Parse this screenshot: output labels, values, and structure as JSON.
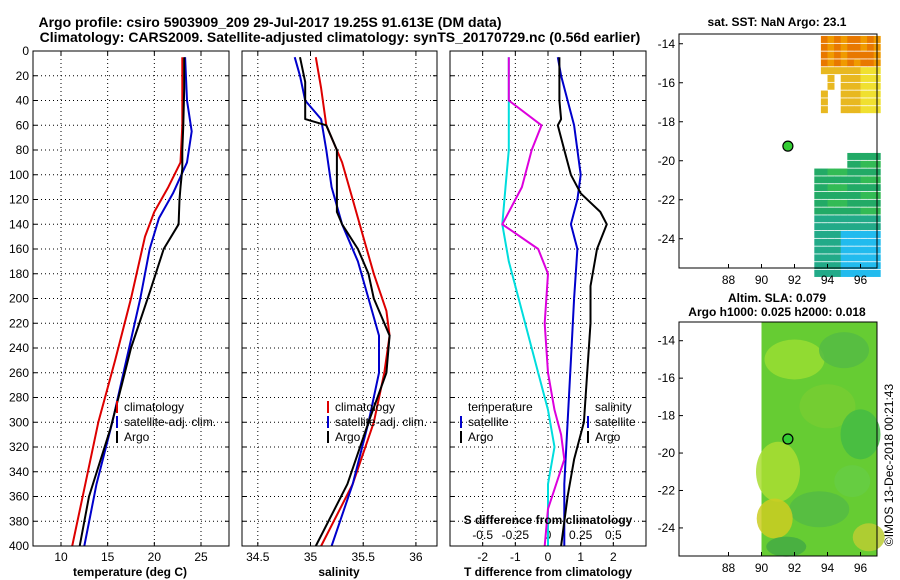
{
  "title_line1": "Argo profile: csiro 5903909_209 29-Jul-2017 19.25S 91.613E (DM data)",
  "title_line2": "Climatology: CARS2009. Satellite-adjusted climatology: synTS_20170729.nc (0.56d earlier)",
  "credit": "©IMOS 13-Dec-2018 00:21:43",
  "colors": {
    "climatology": "#dd0000",
    "satellite": "#0000cc",
    "argo": "#000000",
    "sdiff": "#dd00dd",
    "tdiff": "#00dddd"
  },
  "chart_data": [
    {
      "type": "line",
      "name": "temperature-profile",
      "xlabel": "temperature (deg C)",
      "ylabel": "",
      "xlim": [
        7,
        28
      ],
      "ylim": [
        400,
        0
      ],
      "xticks": [
        10,
        15,
        20,
        25
      ],
      "yticks": [
        0,
        20,
        40,
        60,
        80,
        100,
        120,
        140,
        160,
        180,
        200,
        220,
        240,
        260,
        280,
        300,
        320,
        340,
        360,
        380,
        400
      ],
      "grid": true,
      "legend": [
        {
          "label": "climatology",
          "color": "#dd0000"
        },
        {
          "label": "satellite-adj. clim.",
          "color": "#0000cc"
        },
        {
          "label": "Argo",
          "color": "#000000"
        }
      ],
      "series": [
        {
          "name": "climatology",
          "color": "#dd0000",
          "points": [
            [
              23.0,
              5
            ],
            [
              23.0,
              60
            ],
            [
              22.8,
              90
            ],
            [
              21.5,
              110
            ],
            [
              20.0,
              130
            ],
            [
              19.0,
              150
            ],
            [
              17.5,
              200
            ],
            [
              15.8,
              250
            ],
            [
              14.0,
              300
            ],
            [
              12.6,
              350
            ],
            [
              11.2,
              400
            ]
          ]
        },
        {
          "name": "satellite-adj. clim.",
          "color": "#0000cc",
          "points": [
            [
              23.3,
              5
            ],
            [
              23.5,
              40
            ],
            [
              24.0,
              65
            ],
            [
              23.5,
              90
            ],
            [
              22.0,
              115
            ],
            [
              20.5,
              135
            ],
            [
              19.5,
              160
            ],
            [
              18.5,
              200
            ],
            [
              17.0,
              250
            ],
            [
              15.5,
              300
            ],
            [
              13.8,
              350
            ],
            [
              12.5,
              400
            ]
          ]
        },
        {
          "name": "Argo",
          "color": "#000000",
          "points": [
            [
              23.2,
              5
            ],
            [
              23.2,
              30
            ],
            [
              23.1,
              60
            ],
            [
              23.0,
              80
            ],
            [
              23.0,
              95
            ],
            [
              22.8,
              110
            ],
            [
              22.7,
              120
            ],
            [
              22.6,
              140
            ],
            [
              21.0,
              160
            ],
            [
              19.5,
              195
            ],
            [
              17.5,
              240
            ],
            [
              16.5,
              270
            ],
            [
              15.3,
              305
            ],
            [
              13.0,
              360
            ],
            [
              12.0,
              400
            ]
          ]
        }
      ]
    },
    {
      "type": "line",
      "name": "salinity-profile",
      "xlabel": "salinity",
      "ylabel": "",
      "xlim": [
        34.35,
        36.2
      ],
      "ylim": [
        400,
        0
      ],
      "xticks": [
        34.5,
        35,
        35.5,
        36
      ],
      "xticklabels": [
        "34.5",
        "35",
        "35.5",
        "36"
      ],
      "grid": true,
      "legend": [
        {
          "label": "climatology",
          "color": "#dd0000"
        },
        {
          "label": "satellite-adj. clim.",
          "color": "#0000cc"
        },
        {
          "label": "Argo",
          "color": "#000000"
        }
      ],
      "series": [
        {
          "name": "climatology",
          "color": "#dd0000",
          "points": [
            [
              35.05,
              5
            ],
            [
              35.1,
              30
            ],
            [
              35.15,
              60
            ],
            [
              35.3,
              90
            ],
            [
              35.4,
              120
            ],
            [
              35.5,
              150
            ],
            [
              35.6,
              180
            ],
            [
              35.72,
              210
            ],
            [
              35.75,
              230
            ],
            [
              35.7,
              260
            ],
            [
              35.6,
              300
            ],
            [
              35.4,
              350
            ],
            [
              35.1,
              400
            ]
          ]
        },
        {
          "name": "satellite-adj. clim.",
          "color": "#0000cc",
          "points": [
            [
              34.85,
              5
            ],
            [
              34.9,
              20
            ],
            [
              34.95,
              40
            ],
            [
              35.1,
              55
            ],
            [
              35.15,
              80
            ],
            [
              35.2,
              110
            ],
            [
              35.3,
              140
            ],
            [
              35.45,
              170
            ],
            [
              35.55,
              200
            ],
            [
              35.65,
              230
            ],
            [
              35.65,
              260
            ],
            [
              35.55,
              300
            ],
            [
              35.4,
              350
            ],
            [
              35.2,
              400
            ]
          ]
        },
        {
          "name": "Argo",
          "color": "#000000",
          "points": [
            [
              34.9,
              5
            ],
            [
              34.95,
              25
            ],
            [
              34.95,
              55
            ],
            [
              35.15,
              60
            ],
            [
              35.25,
              80
            ],
            [
              35.25,
              110
            ],
            [
              35.25,
              130
            ],
            [
              35.3,
              140
            ],
            [
              35.45,
              160
            ],
            [
              35.55,
              180
            ],
            [
              35.6,
              200
            ],
            [
              35.75,
              230
            ],
            [
              35.72,
              260
            ],
            [
              35.55,
              300
            ],
            [
              35.35,
              350
            ],
            [
              35.05,
              400
            ]
          ]
        }
      ]
    },
    {
      "type": "line",
      "name": "difference-profile",
      "xlabel": "T difference from climatology",
      "top_axis_label": "S difference from climatology",
      "xlim": [
        -3,
        3
      ],
      "ylim": [
        400,
        0
      ],
      "xticks": [
        -2,
        -1,
        0,
        1,
        2
      ],
      "top_xticks": [
        "-0.5",
        "-0.25",
        "0",
        "0.25",
        "0.5"
      ],
      "grid": true,
      "legend_left": {
        "title": "temperature",
        "items": [
          {
            "label": "satellite",
            "color": "#0000cc"
          },
          {
            "label": "Argo",
            "color": "#000000"
          }
        ]
      },
      "legend_right": {
        "title": "salinity",
        "items": [
          {
            "label": "satellite",
            "color": "#0000cc"
          },
          {
            "label": "Argo",
            "color": "#000000"
          }
        ]
      },
      "series": [
        {
          "name": "S diff satellite",
          "color": "#0000cc",
          "points": [
            [
              0.3,
              5
            ],
            [
              0.4,
              20
            ],
            [
              0.6,
              40
            ],
            [
              0.8,
              60
            ],
            [
              0.9,
              80
            ],
            [
              1.0,
              100
            ],
            [
              0.9,
              120
            ],
            [
              0.7,
              140
            ],
            [
              0.9,
              160
            ],
            [
              0.8,
              200
            ],
            [
              0.7,
              250
            ],
            [
              0.6,
              300
            ],
            [
              0.5,
              350
            ],
            [
              0.5,
              400
            ]
          ]
        },
        {
          "name": "S diff Argo",
          "color": "#000000",
          "points": [
            [
              0.35,
              5
            ],
            [
              0.35,
              40
            ],
            [
              0.4,
              55
            ],
            [
              0.3,
              60
            ],
            [
              0.5,
              80
            ],
            [
              0.7,
              100
            ],
            [
              1.0,
              115
            ],
            [
              1.6,
              130
            ],
            [
              1.8,
              140
            ],
            [
              1.5,
              160
            ],
            [
              1.3,
              190
            ],
            [
              1.3,
              220
            ],
            [
              1.2,
              260
            ],
            [
              1.1,
              300
            ],
            [
              0.8,
              330
            ],
            [
              0.6,
              360
            ],
            [
              0.4,
              400
            ]
          ]
        },
        {
          "name": "T diff satellite",
          "color": "#00dddd",
          "points": [
            [
              -1.2,
              5
            ],
            [
              -1.2,
              40
            ],
            [
              -1.2,
              80
            ],
            [
              -1.3,
              110
            ],
            [
              -1.4,
              140
            ],
            [
              -1.2,
              170
            ],
            [
              -0.8,
              210
            ],
            [
              -0.4,
              250
            ],
            [
              0.0,
              290
            ],
            [
              0.2,
              320
            ],
            [
              0.0,
              350
            ],
            [
              0.0,
              400
            ]
          ]
        },
        {
          "name": "T diff Argo",
          "color": "#dd00dd",
          "points": [
            [
              -1.2,
              5
            ],
            [
              -1.2,
              40
            ],
            [
              -0.2,
              60
            ],
            [
              -0.5,
              80
            ],
            [
              -0.8,
              110
            ],
            [
              -1.4,
              140
            ],
            [
              -0.3,
              160
            ],
            [
              0.0,
              180
            ],
            [
              -0.1,
              220
            ],
            [
              0.0,
              260
            ],
            [
              0.2,
              290
            ],
            [
              0.4,
              310
            ],
            [
              0.5,
              330
            ],
            [
              0.0,
              370
            ],
            [
              -0.1,
              400
            ]
          ]
        }
      ]
    },
    {
      "type": "heatmap",
      "name": "sst-map",
      "title": "sat. SST: NaN Argo: 23.1",
      "xlim": [
        85,
        97
      ],
      "ylim": [
        -25.5,
        -13.5
      ],
      "xticks": [
        88,
        90,
        92,
        94,
        96
      ],
      "yticks": [
        -14,
        -16,
        -18,
        -20,
        -22,
        -24
      ],
      "argo_position": [
        91.6,
        -19.25
      ]
    },
    {
      "type": "heatmap",
      "name": "sla-map",
      "title_line1": "Altim. SLA: 0.079",
      "title_line2": "Argo h1000: 0.025 h2000: 0.018",
      "xlim": [
        85,
        97
      ],
      "ylim": [
        -25.5,
        -13
      ],
      "xticks": [
        88,
        90,
        92,
        94,
        96
      ],
      "yticks": [
        -14,
        -16,
        -18,
        -20,
        -22,
        -24
      ],
      "argo_position": [
        91.6,
        -19.25
      ]
    }
  ]
}
